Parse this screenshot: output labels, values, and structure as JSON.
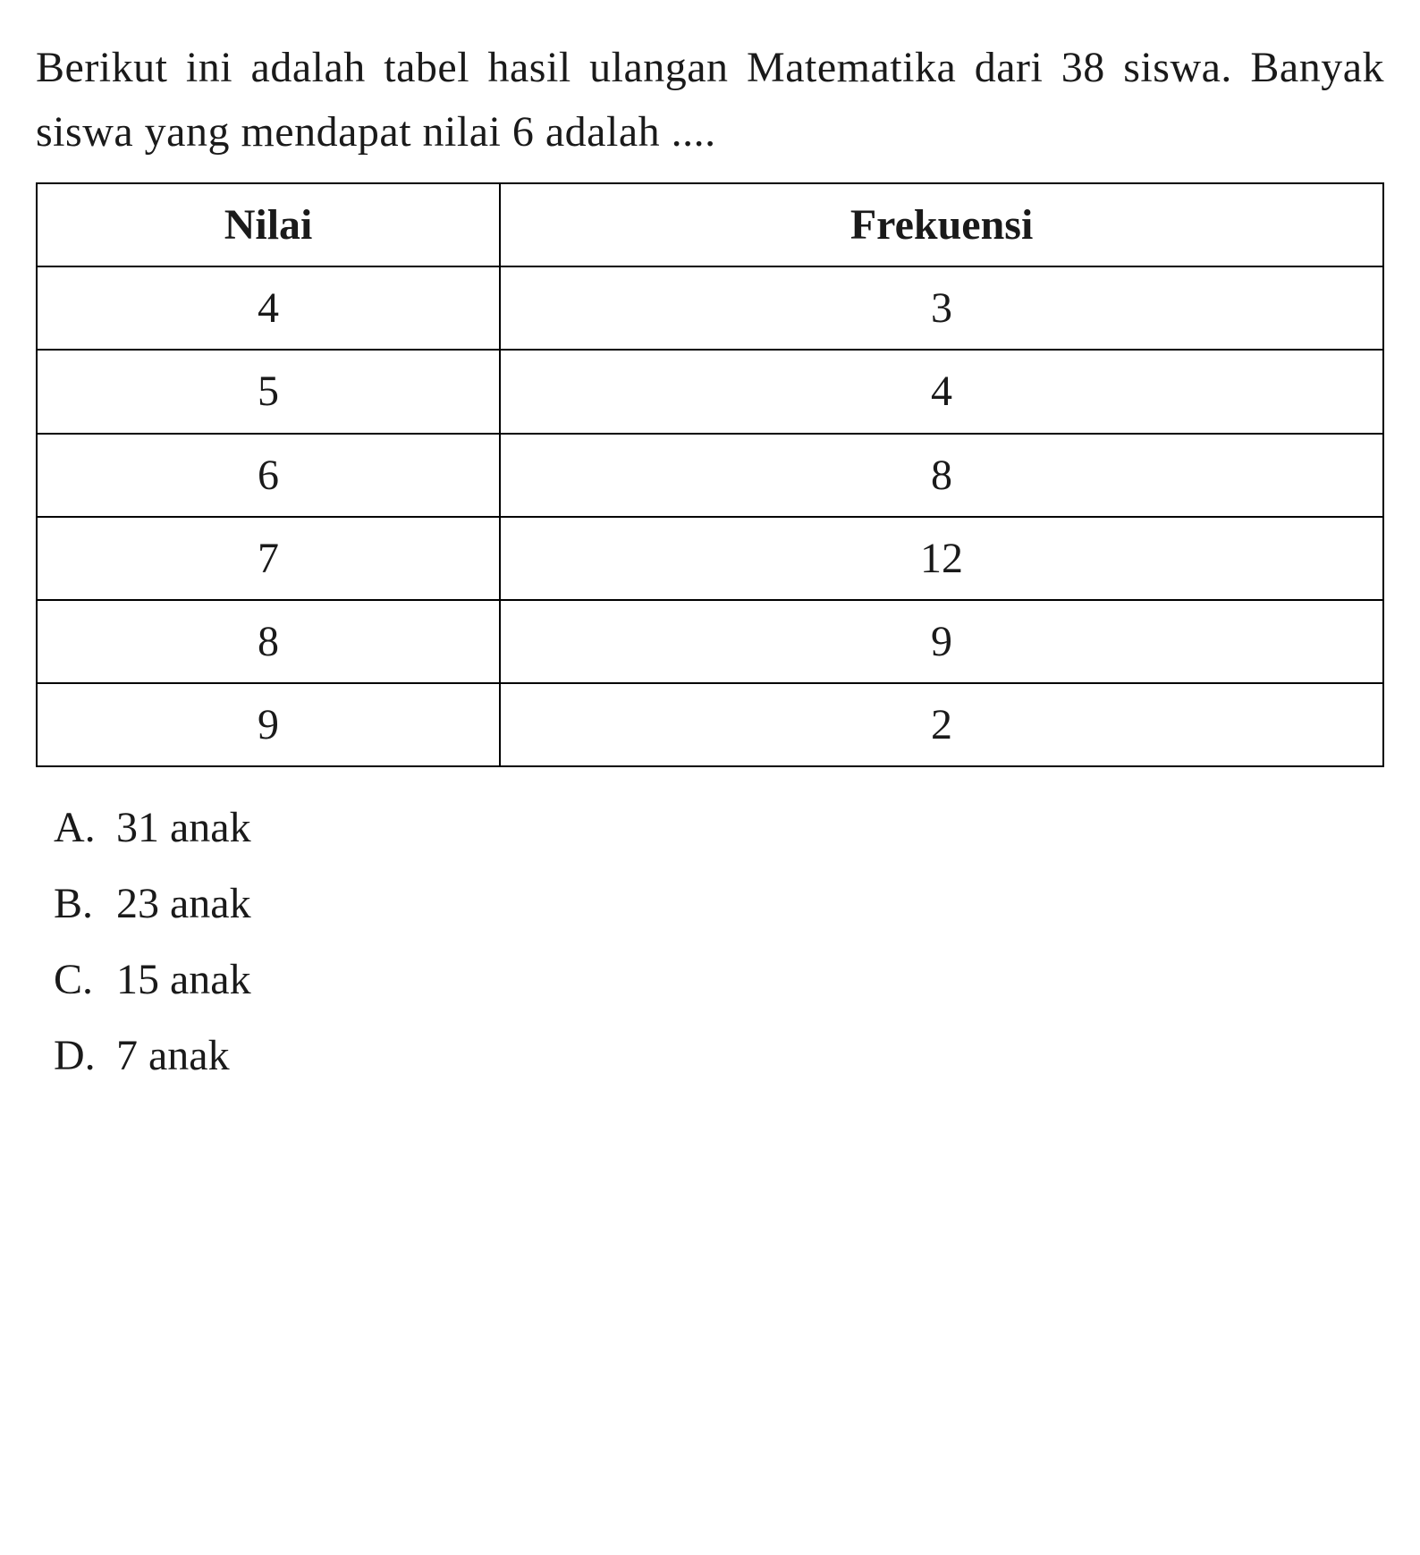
{
  "question": {
    "text": "Berikut ini adalah tabel hasil ulangan Matematika dari 38 siswa. Banyak siswa yang mendapat nilai 6 adalah ...."
  },
  "table": {
    "columns": [
      "Nilai",
      "Frekuensi"
    ],
    "rows": [
      [
        "4",
        "3"
      ],
      [
        "5",
        "4"
      ],
      [
        "6",
        "8"
      ],
      [
        "7",
        "12"
      ],
      [
        "8",
        "9"
      ],
      [
        "9",
        "2"
      ]
    ],
    "border_color": "#000000",
    "header_fontweight": "bold",
    "fontsize": 48,
    "text_align": "center"
  },
  "options": {
    "items": [
      {
        "letter": "A.",
        "text": "31 anak"
      },
      {
        "letter": "B.",
        "text": "23 anak"
      },
      {
        "letter": "C.",
        "text": "15 anak"
      },
      {
        "letter": "D.",
        "text": "7 anak"
      }
    ]
  },
  "styling": {
    "background_color": "#ffffff",
    "text_color": "#1a1a1a",
    "font_family": "Georgia, Times New Roman, serif",
    "body_fontsize": 48
  }
}
